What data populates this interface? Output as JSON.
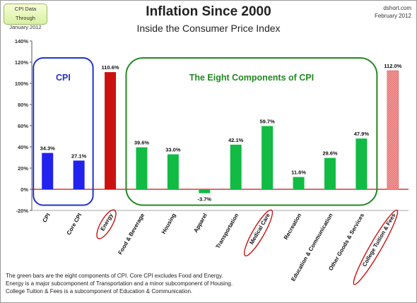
{
  "header": {
    "data_through_line1": "CPI Data Through",
    "data_through_line2": "January 2012",
    "source_line1": "dshort.com",
    "source_line2": "February 2012"
  },
  "chart_data": {
    "type": "bar",
    "title": "Inflation Since 2000",
    "subtitle": "Inside the Consumer Price Index",
    "categories": [
      "CPI",
      "Core CPI",
      "Energy",
      "Food & Beverage",
      "Housing",
      "Apparel",
      "Transportation",
      "Medical Care",
      "Recreation",
      "Education & Communication",
      "Other Goods & Services",
      "College Tuition & Fees"
    ],
    "values": [
      34.3,
      27.1,
      110.6,
      39.6,
      33.0,
      -3.7,
      42.1,
      59.7,
      11.6,
      29.6,
      47.9,
      112.0
    ],
    "value_labels": [
      "34.3%",
      "27.1%",
      "110.6%",
      "39.6%",
      "33.0%",
      "-3.7%",
      "42.1%",
      "59.7%",
      "11.6%",
      "29.6%",
      "47.9%",
      "112.0%"
    ],
    "bar_colors": [
      "#2222ee",
      "#2222ee",
      "#cc1111",
      "#11bb44",
      "#11bb44",
      "#11bb44",
      "#11bb44",
      "#11bb44",
      "#11bb44",
      "#11bb44",
      "#11bb44",
      "#f08a8a"
    ],
    "circled_categories": [
      "Energy",
      "Medical Care",
      "College Tuition & Fees"
    ],
    "ylim": [
      -20,
      140
    ],
    "yticks": [
      "-20%",
      "0%",
      "20%",
      "40%",
      "60%",
      "80%",
      "100%",
      "120%",
      "140%"
    ],
    "grid": false,
    "zero_line_color": "#cc1111",
    "groups": [
      {
        "label": "CPI",
        "color": "#2233cc"
      },
      {
        "label": "The Eight Components of CPI",
        "color": "#228822"
      }
    ]
  },
  "notes": {
    "line1": "The green bars are the eight components of CPI. Core CPI excludes Food and Energy.",
    "line2": "Energy is a major subcomponent of Transportation and a minor subcomponent of Housing.",
    "line3": "College Tuition & Fees is a subcomponent of Education & Communication."
  }
}
